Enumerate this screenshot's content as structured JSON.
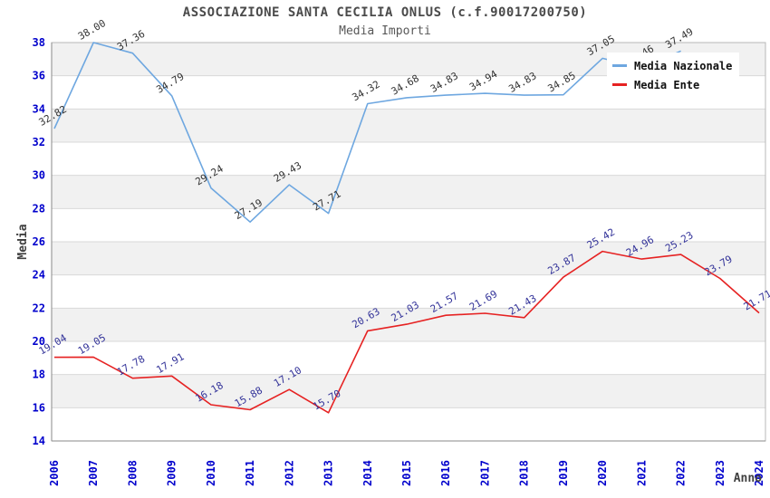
{
  "header": {
    "title": "ASSOCIAZIONE SANTA CECILIA ONLUS (c.f.90017200750)",
    "subtitle": "Media Importi"
  },
  "legend": {
    "items": [
      {
        "label": "Media Nazionale",
        "color": "#6ea7e0"
      },
      {
        "label": "Media Ente",
        "color": "#e62222"
      }
    ]
  },
  "chart_data": {
    "type": "line",
    "title": "ASSOCIAZIONE SANTA CECILIA ONLUS (c.f.90017200750)",
    "subtitle": "Media Importi",
    "xlabel": "Anno",
    "ylabel": "Media",
    "categories": [
      "2006",
      "2007",
      "2008",
      "2009",
      "2010",
      "2011",
      "2012",
      "2013",
      "2014",
      "2015",
      "2016",
      "2017",
      "2018",
      "2019",
      "2020",
      "2021",
      "2022",
      "2023",
      "2024"
    ],
    "ylim": [
      14,
      38
    ],
    "ytick_interval": 2,
    "grid": true,
    "banded_background": true,
    "legend_position": "top-right-inside",
    "series": [
      {
        "name": "Media Nazionale",
        "color": "#6ea7e0",
        "label_color": "#333333",
        "values": [
          32.82,
          38.0,
          37.36,
          34.79,
          29.24,
          27.19,
          29.43,
          27.71,
          34.32,
          34.68,
          34.83,
          34.94,
          34.83,
          34.85,
          37.05,
          36.46,
          37.49,
          null,
          null
        ]
      },
      {
        "name": "Media Ente",
        "color": "#e62222",
        "label_color": "#333399",
        "values": [
          19.04,
          19.05,
          17.78,
          17.91,
          16.18,
          15.88,
          17.1,
          15.7,
          20.63,
          21.03,
          21.57,
          21.69,
          21.43,
          23.87,
          25.42,
          24.96,
          25.23,
          23.79,
          21.71
        ]
      }
    ],
    "colors": {
      "tick_label": "#0000cc",
      "band_fill": "#f1f1f1",
      "gridline": "#d9d9d9",
      "plot_border": "#b8b8b8",
      "axis_edge": "#8a8a8a",
      "axis_title": "#404040",
      "title": "#4a4a4a"
    }
  }
}
